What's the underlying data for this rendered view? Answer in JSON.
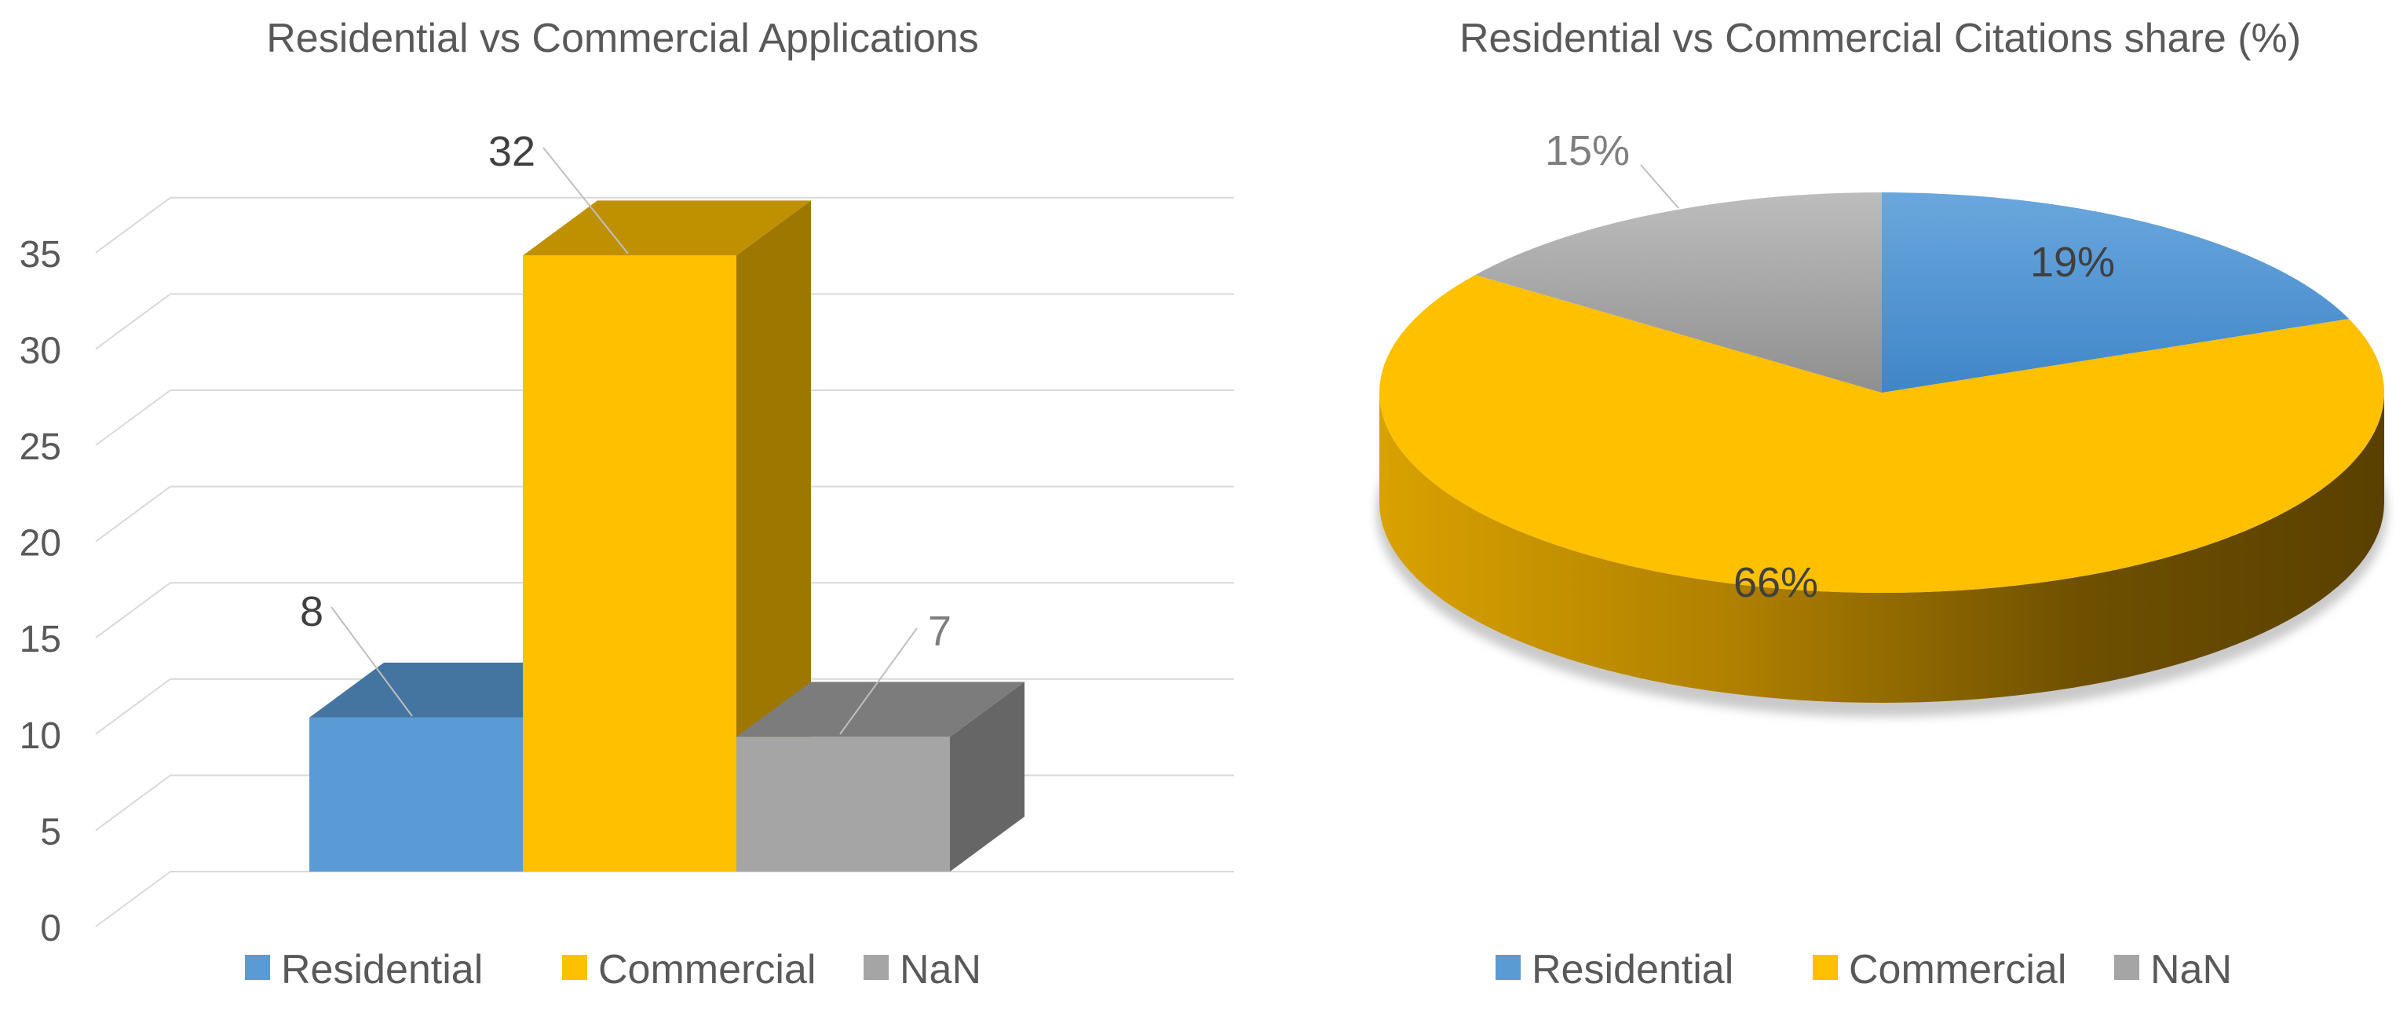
{
  "chart_data": [
    {
      "type": "bar",
      "title": "Residential vs Commercial Applications",
      "categories": [
        "Residential",
        "Commercial",
        "NaN"
      ],
      "values": [
        8,
        32,
        7
      ],
      "ylim": [
        0,
        35
      ],
      "yticks": [
        "0",
        "5",
        "10",
        "15",
        "20",
        "25",
        "30",
        "35"
      ],
      "xlabel": "",
      "ylabel": "",
      "grid": true,
      "legend": "bottom",
      "legend_entries": [
        "Residential",
        "Commercial",
        "NaN"
      ],
      "colors": {
        "Residential": "#5b9bd5",
        "Commercial": "#ffc000",
        "NaN": "#a5a5a5"
      }
    },
    {
      "type": "pie",
      "title": "Residential vs Commercial Citations share (%)",
      "labels": [
        "Residential",
        "Commercial",
        "NaN"
      ],
      "values": [
        19,
        66,
        15
      ],
      "data_labels": [
        "19%",
        "66%",
        "15%"
      ],
      "legend": "bottom",
      "legend_entries": [
        "Residential",
        "Commercial",
        "NaN"
      ],
      "colors": {
        "Residential": "#5b9bd5",
        "Commercial": "#ffc000",
        "NaN": "#a5a5a5"
      }
    }
  ]
}
